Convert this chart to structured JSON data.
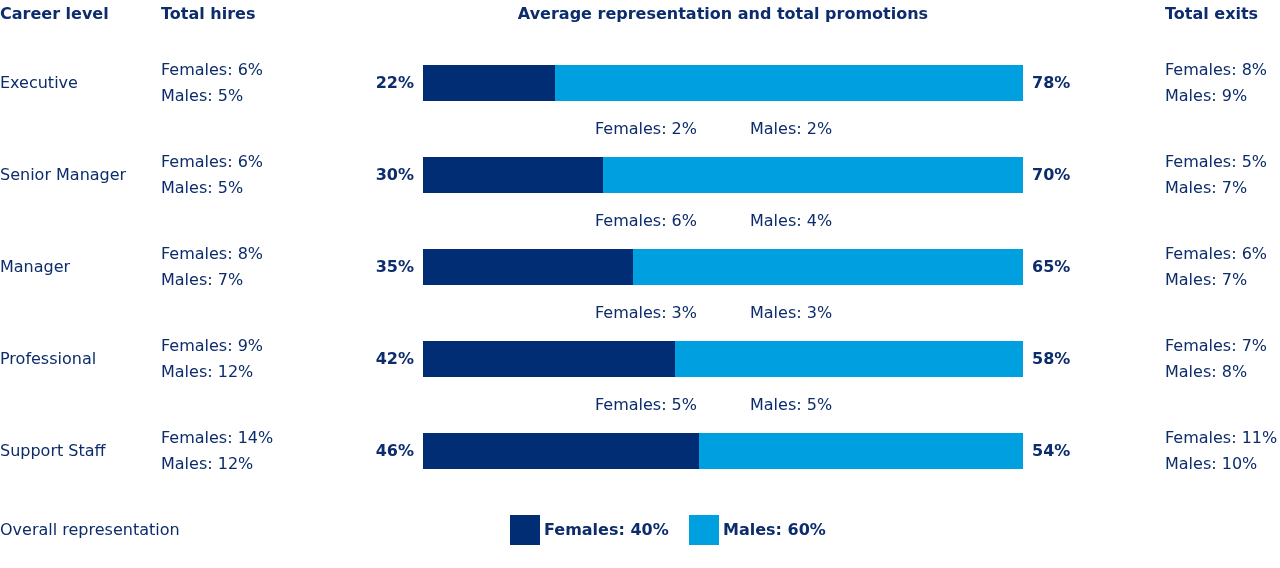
{
  "chart_data": {
    "type": "bar",
    "orientation": "horizontal",
    "stacked": true,
    "title": "Average representation and total promotions",
    "ylabel": "Career level",
    "categories": [
      "Executive",
      "Senior Manager",
      "Manager",
      "Professional",
      "Support Staff"
    ],
    "series": [
      {
        "name": "Females: 40%",
        "color": "#002d74",
        "values": [
          22,
          30,
          35,
          42,
          46
        ],
        "value_labels": [
          "22%",
          "30%",
          "35%",
          "42%",
          "46%"
        ]
      },
      {
        "name": "Males: 60%",
        "color": "#009fe0",
        "values": [
          78,
          70,
          65,
          58,
          54
        ],
        "value_labels": [
          "78%",
          "70%",
          "65%",
          "58%",
          "54%"
        ]
      }
    ],
    "legend": "bottom",
    "legend_title": "Overall representation",
    "annotations": [
      "Total hires",
      "Total exits",
      "Females: 6%",
      "Males: 5%",
      "Females: 6%",
      "Males: 5%",
      "Females: 8%",
      "Males: 7%",
      "Females: 9%",
      "Males: 12%",
      "Females: 14%",
      "Males: 12%",
      "Females: 2%",
      "Males: 2%",
      "Females: 6%",
      "Males: 4%",
      "Females: 3%",
      "Males: 3%",
      "Females: 5%",
      "Males: 5%",
      "Females: 8%",
      "Males: 9%",
      "Females: 5%",
      "Males: 7%",
      "Females: 6%",
      "Males: 7%",
      "Females: 7%",
      "Males: 8%",
      "Females: 11%",
      "Males: 10%"
    ]
  }
}
